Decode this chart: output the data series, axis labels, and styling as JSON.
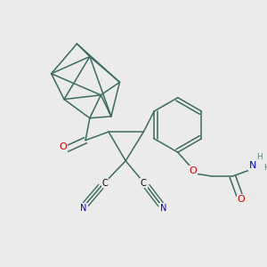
{
  "bg_color": "#ebebeb",
  "bond_color": "#3a6b60",
  "atom_colors": {
    "N": "#0000cc",
    "O": "#cc0000",
    "C": "#000000",
    "H": "#5a7a7a"
  },
  "figsize": [
    3.0,
    3.0
  ],
  "dpi": 100
}
